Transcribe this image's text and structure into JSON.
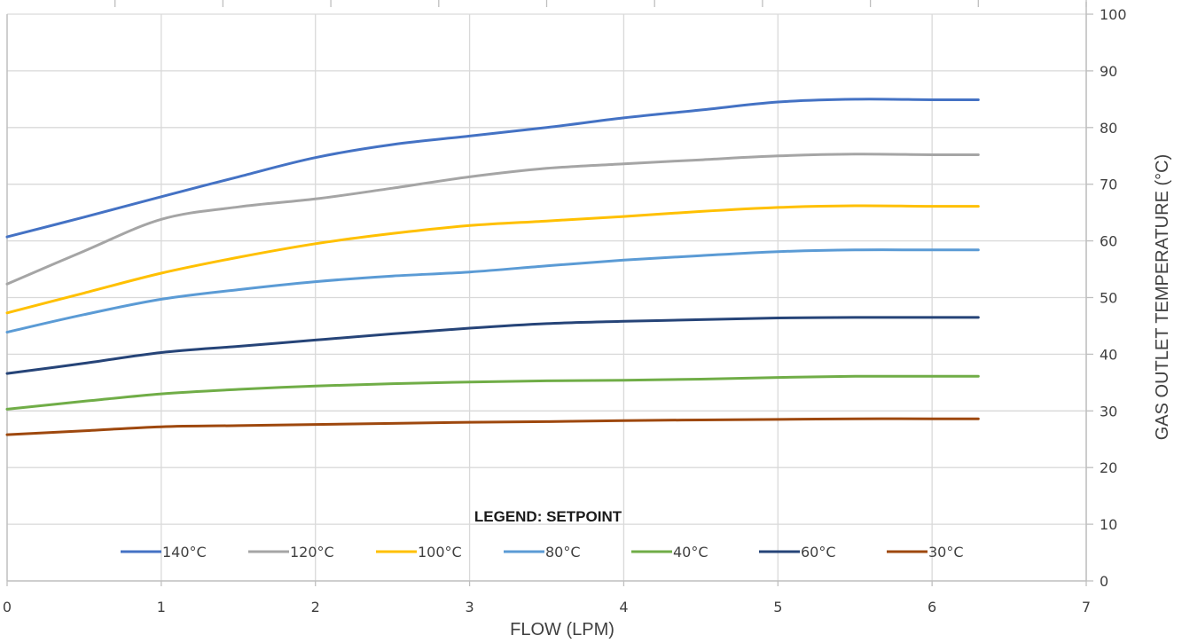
{
  "chart_data": {
    "type": "line",
    "xlabel": "FLOW (LPM)",
    "ylabel": "GAS OUTLET TEMPERATURE (°C)",
    "xlim": [
      0,
      7
    ],
    "ylim": [
      0,
      100
    ],
    "x_ticks": [
      0,
      1,
      2,
      3,
      4,
      5,
      6,
      7
    ],
    "y_ticks": [
      0,
      10,
      20,
      30,
      40,
      50,
      60,
      70,
      80,
      90,
      100
    ],
    "y_axis_position": "right",
    "grid": true,
    "legend_title": "LEGEND: SETPOINT",
    "legend_position": "bottom",
    "x": [
      0,
      0.5,
      1,
      1.5,
      2,
      2.5,
      3,
      3.5,
      4,
      4.5,
      5,
      5.5,
      6,
      6.3
    ],
    "series": [
      {
        "name": "140°C",
        "color": "#4472C4",
        "values": [
          60.7,
          64.2,
          67.8,
          71.3,
          74.7,
          77.0,
          78.5,
          80.0,
          81.7,
          83.1,
          84.5,
          85.0,
          84.9,
          84.9
        ]
      },
      {
        "name": "120°C",
        "color": "#A5A5A5",
        "values": [
          52.4,
          58.2,
          63.8,
          66.0,
          67.4,
          69.3,
          71.3,
          72.8,
          73.6,
          74.3,
          75.0,
          75.3,
          75.2,
          75.2
        ]
      },
      {
        "name": "100°C",
        "color": "#FFC000",
        "values": [
          47.3,
          50.8,
          54.3,
          57.1,
          59.5,
          61.3,
          62.7,
          63.5,
          64.3,
          65.2,
          65.9,
          66.2,
          66.1,
          66.1
        ]
      },
      {
        "name": "80°C",
        "color": "#5B9BD5",
        "values": [
          43.9,
          47.0,
          49.7,
          51.4,
          52.8,
          53.8,
          54.5,
          55.6,
          56.6,
          57.4,
          58.1,
          58.4,
          58.4,
          58.4
        ]
      },
      {
        "name": "40°C",
        "color": "#70AD47",
        "values": [
          30.3,
          31.7,
          33.0,
          33.8,
          34.4,
          34.8,
          35.1,
          35.3,
          35.4,
          35.6,
          35.9,
          36.1,
          36.1,
          36.1
        ]
      },
      {
        "name": "60°C",
        "color": "#264478",
        "values": [
          36.6,
          38.4,
          40.3,
          41.4,
          42.5,
          43.6,
          44.6,
          45.4,
          45.8,
          46.1,
          46.4,
          46.5,
          46.5,
          46.5
        ]
      },
      {
        "name": "30°C",
        "color": "#9E480E",
        "values": [
          25.8,
          26.5,
          27.2,
          27.4,
          27.6,
          27.8,
          28.0,
          28.1,
          28.3,
          28.4,
          28.5,
          28.6,
          28.6,
          28.6
        ]
      }
    ]
  }
}
